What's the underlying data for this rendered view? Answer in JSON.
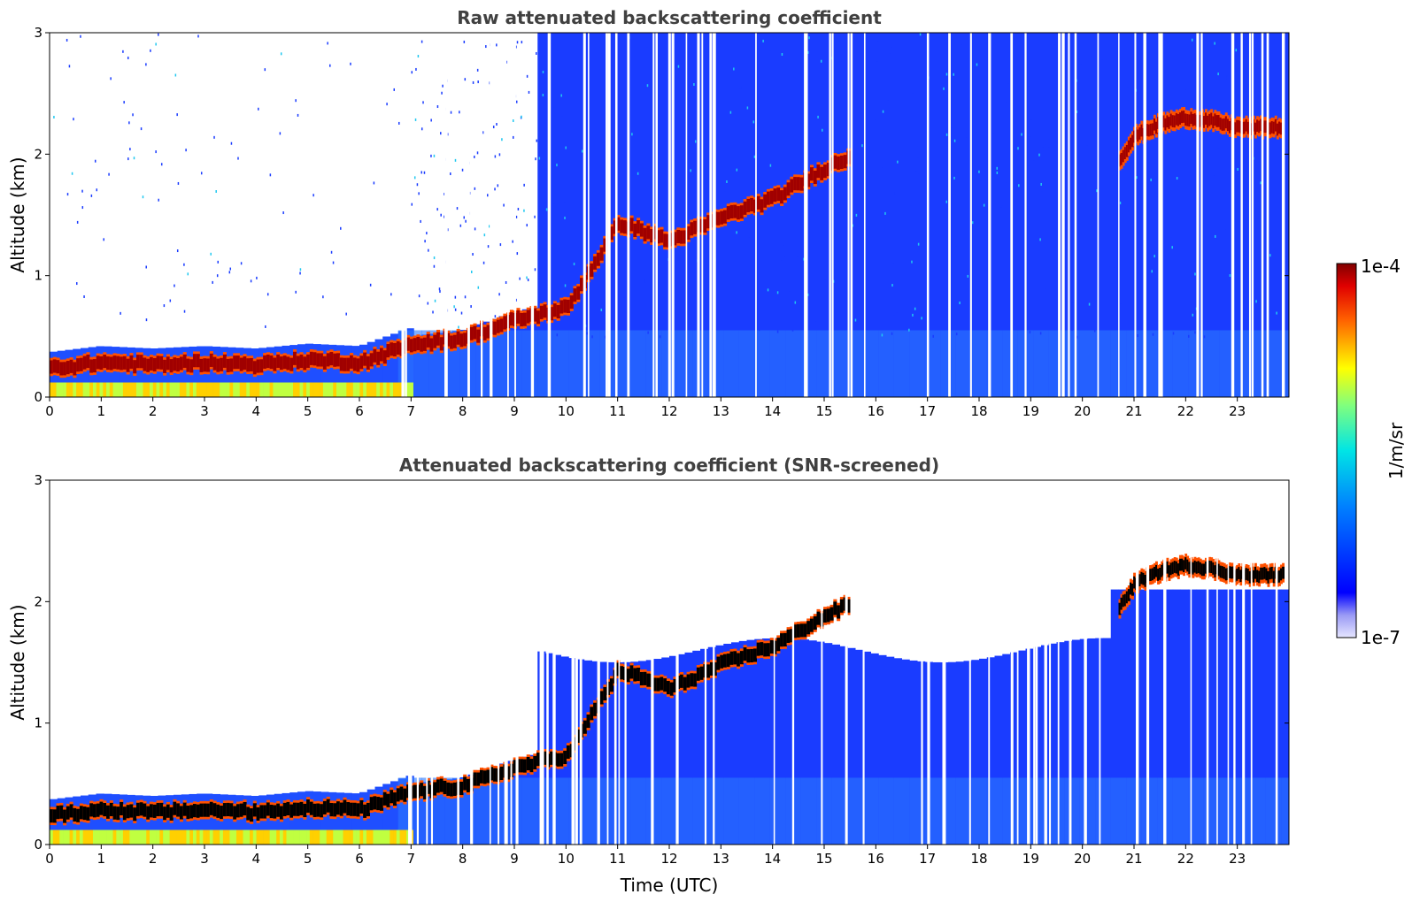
{
  "chart_data": [
    {
      "type": "heatmap",
      "title": "Raw attenuated backscattering coefficient",
      "xlabel": "",
      "ylabel": "Altitude (km)",
      "xlim": [
        0,
        24
      ],
      "ylim": [
        0,
        3
      ],
      "x_ticks": [
        "0",
        "1",
        "2",
        "3",
        "4",
        "5",
        "6",
        "7",
        "8",
        "9",
        "10",
        "11",
        "12",
        "13",
        "14",
        "15",
        "16",
        "17",
        "18",
        "19",
        "20",
        "21",
        "22",
        "23"
      ],
      "y_ticks": [
        "0",
        "1",
        "2",
        "3"
      ],
      "screened": false,
      "layer_height_km": {
        "time_utc": [
          0,
          1,
          2,
          3,
          4,
          5,
          6,
          7,
          8,
          9,
          10,
          11,
          12,
          13,
          14,
          15,
          15.5
        ],
        "altitude_km": [
          0.25,
          0.3,
          0.28,
          0.3,
          0.28,
          0.32,
          0.3,
          0.45,
          0.5,
          0.65,
          0.75,
          1.45,
          1.3,
          1.5,
          1.65,
          1.9,
          2.0
        ]
      },
      "upper_layer": {
        "time_utc": [
          20.7,
          21,
          21.5,
          22,
          22.5,
          23,
          23.9
        ],
        "altitude_km": [
          1.95,
          2.15,
          2.25,
          2.3,
          2.27,
          2.22,
          2.22
        ]
      }
    },
    {
      "type": "heatmap",
      "title": "Attenuated backscattering coefficient (SNR-screened)",
      "xlabel": "Time (UTC)",
      "ylabel": "Altitude (km)",
      "xlim": [
        0,
        24
      ],
      "ylim": [
        0,
        3
      ],
      "x_ticks": [
        "0",
        "1",
        "2",
        "3",
        "4",
        "5",
        "6",
        "7",
        "8",
        "9",
        "10",
        "11",
        "12",
        "13",
        "14",
        "15",
        "16",
        "17",
        "18",
        "19",
        "20",
        "21",
        "22",
        "23"
      ],
      "y_ticks": [
        "0",
        "1",
        "2",
        "3"
      ],
      "screened": true,
      "layer_height_km": {
        "time_utc": [
          0,
          1,
          2,
          3,
          4,
          5,
          6,
          7,
          8,
          9,
          10,
          11,
          12,
          13,
          14,
          15,
          15.5
        ],
        "altitude_km": [
          0.25,
          0.3,
          0.28,
          0.3,
          0.28,
          0.32,
          0.3,
          0.45,
          0.5,
          0.65,
          0.75,
          1.45,
          1.3,
          1.5,
          1.65,
          1.9,
          2.0
        ]
      },
      "upper_layer": {
        "time_utc": [
          20.7,
          21,
          21.5,
          22,
          22.5,
          23,
          23.9
        ],
        "altitude_km": [
          1.95,
          2.15,
          2.25,
          2.3,
          2.27,
          2.22,
          2.22
        ]
      }
    }
  ],
  "colorbar": {
    "label": "1/m/sr",
    "max_label": "1e-4",
    "min_label": "1e-7",
    "colormap": "jet",
    "scale": "log",
    "range": [
      1e-07,
      0.0001
    ]
  }
}
